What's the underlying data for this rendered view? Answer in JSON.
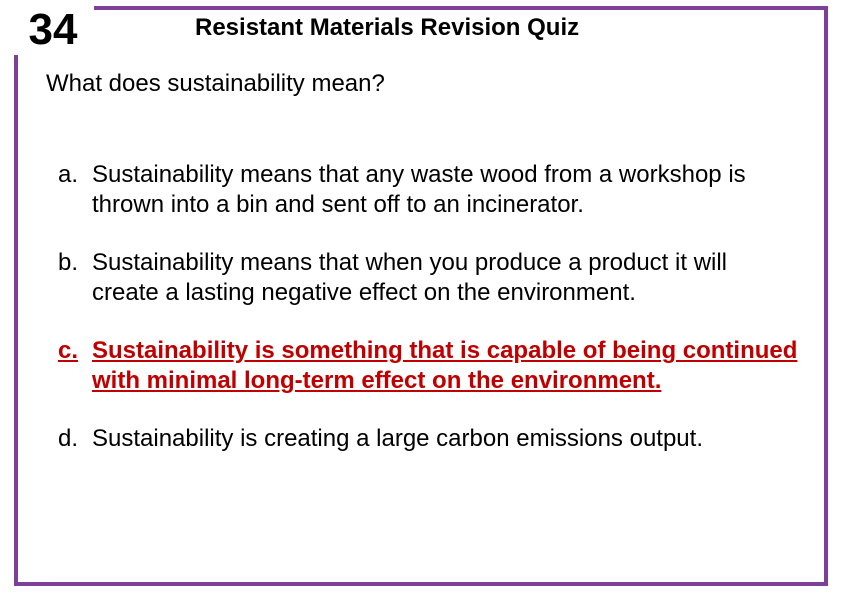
{
  "slide_number": "34",
  "title": "Resistant Materials Revision Quiz",
  "question": "What does sustainability mean?",
  "frame_border_color": "#7e3f98",
  "correct_color": "#c00000",
  "text_color": "#000000",
  "background_color": "#ffffff",
  "font_family": "Comic Sans MS",
  "answers": [
    {
      "marker": "a.",
      "text": "Sustainability means that any waste wood from a workshop is thrown into a bin and sent off to an incinerator.",
      "correct": false
    },
    {
      "marker": "b.",
      "text": "Sustainability means that when you produce a product it will create a lasting negative effect on the environment.",
      "correct": false
    },
    {
      "marker": "c.",
      "text": "Sustainability is something that is capable of being continued with minimal long-term effect on the environment.",
      "correct": true
    },
    {
      "marker": "d.",
      "text": "Sustainability is creating a large carbon emissions output.",
      "correct": false
    }
  ]
}
